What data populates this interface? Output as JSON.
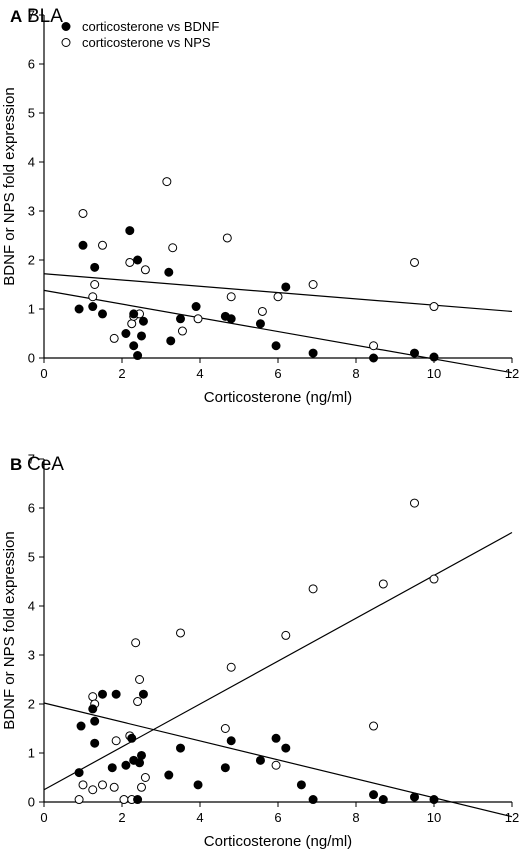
{
  "chart_data": [
    {
      "type": "scatter",
      "panel_label": "A",
      "title": "BLA",
      "xlabel": "Corticosterone (ng/ml)",
      "ylabel": "BDNF or NPS fold expression",
      "xlim": [
        0,
        12
      ],
      "ylim": [
        0,
        7
      ],
      "xticks": [
        0,
        2,
        4,
        6,
        8,
        10,
        12
      ],
      "yticks": [
        0,
        1,
        2,
        3,
        4,
        5,
        6,
        7
      ],
      "grid": false,
      "legend_position": "top-left",
      "series": [
        {
          "name": "corticosterone vs BDNF",
          "marker": "filled-circle",
          "points": [
            [
              0.9,
              1.0
            ],
            [
              1.0,
              2.3
            ],
            [
              1.25,
              1.05
            ],
            [
              1.3,
              1.85
            ],
            [
              1.5,
              0.9
            ],
            [
              2.1,
              0.5
            ],
            [
              2.2,
              2.6
            ],
            [
              2.3,
              0.25
            ],
            [
              2.3,
              0.9
            ],
            [
              2.4,
              2.0
            ],
            [
              2.4,
              0.05
            ],
            [
              2.5,
              0.45
            ],
            [
              2.55,
              0.75
            ],
            [
              3.2,
              1.75
            ],
            [
              3.25,
              0.35
            ],
            [
              3.5,
              0.8
            ],
            [
              3.9,
              1.05
            ],
            [
              4.65,
              0.85
            ],
            [
              4.8,
              0.8
            ],
            [
              5.55,
              0.7
            ],
            [
              5.95,
              0.25
            ],
            [
              6.2,
              1.45
            ],
            [
              6.9,
              0.1
            ],
            [
              8.45,
              0.0
            ],
            [
              9.5,
              0.1
            ],
            [
              10.0,
              0.02
            ]
          ],
          "fit": [
            [
              0,
              1.38
            ],
            [
              12,
              -0.3
            ]
          ]
        },
        {
          "name": "corticosterone vs NPS",
          "marker": "open-circle",
          "points": [
            [
              1.0,
              2.95
            ],
            [
              1.25,
              1.25
            ],
            [
              1.3,
              1.5
            ],
            [
              1.5,
              2.3
            ],
            [
              1.8,
              0.4
            ],
            [
              2.2,
              1.95
            ],
            [
              2.25,
              0.7
            ],
            [
              2.3,
              0.85
            ],
            [
              2.45,
              0.9
            ],
            [
              2.6,
              1.8
            ],
            [
              3.15,
              3.6
            ],
            [
              3.3,
              2.25
            ],
            [
              3.55,
              0.55
            ],
            [
              3.95,
              0.8
            ],
            [
              4.7,
              2.45
            ],
            [
              4.8,
              1.25
            ],
            [
              5.6,
              0.95
            ],
            [
              6.0,
              1.25
            ],
            [
              6.9,
              1.5
            ],
            [
              8.45,
              0.25
            ],
            [
              9.5,
              1.95
            ],
            [
              10.0,
              1.05
            ]
          ],
          "fit": [
            [
              0,
              1.72
            ],
            [
              12,
              0.95
            ]
          ]
        }
      ],
      "legend": [
        "corticosterone vs BDNF",
        "corticosterone vs NPS"
      ]
    },
    {
      "type": "scatter",
      "panel_label": "B",
      "title": "CeA",
      "xlabel": "Corticosterone (ng/ml)",
      "ylabel": "BDNF or NPS fold expression",
      "xlim": [
        0,
        12
      ],
      "ylim": [
        0,
        7
      ],
      "xticks": [
        0,
        2,
        4,
        6,
        8,
        10,
        12
      ],
      "yticks": [
        0,
        1,
        2,
        3,
        4,
        5,
        6,
        7
      ],
      "grid": false,
      "series": [
        {
          "name": "corticosterone vs BDNF",
          "marker": "filled-circle",
          "points": [
            [
              0.9,
              0.6
            ],
            [
              0.95,
              1.55
            ],
            [
              1.25,
              1.9
            ],
            [
              1.3,
              1.65
            ],
            [
              1.3,
              1.2
            ],
            [
              1.5,
              2.2
            ],
            [
              1.75,
              0.7
            ],
            [
              1.85,
              2.2
            ],
            [
              2.1,
              0.75
            ],
            [
              2.25,
              1.3
            ],
            [
              2.3,
              0.85
            ],
            [
              2.4,
              0.05
            ],
            [
              2.45,
              0.8
            ],
            [
              2.5,
              0.95
            ],
            [
              2.55,
              2.2
            ],
            [
              3.2,
              0.55
            ],
            [
              3.5,
              1.1
            ],
            [
              3.95,
              0.35
            ],
            [
              4.65,
              0.7
            ],
            [
              4.8,
              1.25
            ],
            [
              5.55,
              0.85
            ],
            [
              5.95,
              1.3
            ],
            [
              6.2,
              1.1
            ],
            [
              6.6,
              0.35
            ],
            [
              6.9,
              0.05
            ],
            [
              8.45,
              0.15
            ],
            [
              8.7,
              0.05
            ],
            [
              9.5,
              0.1
            ],
            [
              10.0,
              0.05
            ]
          ],
          "fit": [
            [
              0,
              2.02
            ],
            [
              12,
              -0.3
            ]
          ]
        },
        {
          "name": "corticosterone vs NPS",
          "marker": "open-circle",
          "points": [
            [
              0.9,
              0.05
            ],
            [
              1.0,
              0.35
            ],
            [
              1.25,
              0.25
            ],
            [
              1.25,
              2.15
            ],
            [
              1.3,
              2.0
            ],
            [
              1.5,
              0.35
            ],
            [
              1.8,
              0.3
            ],
            [
              1.85,
              1.25
            ],
            [
              2.05,
              0.05
            ],
            [
              2.2,
              1.35
            ],
            [
              2.25,
              0.05
            ],
            [
              2.35,
              3.25
            ],
            [
              2.4,
              2.05
            ],
            [
              2.45,
              2.5
            ],
            [
              2.5,
              0.3
            ],
            [
              2.6,
              0.5
            ],
            [
              3.5,
              3.45
            ],
            [
              4.65,
              1.5
            ],
            [
              4.8,
              2.75
            ],
            [
              5.95,
              0.75
            ],
            [
              6.2,
              3.4
            ],
            [
              6.9,
              4.35
            ],
            [
              8.45,
              1.55
            ],
            [
              8.7,
              4.45
            ],
            [
              9.5,
              6.1
            ],
            [
              10.0,
              4.55
            ]
          ],
          "fit": [
            [
              0,
              0.25
            ],
            [
              12,
              5.5
            ]
          ]
        }
      ]
    }
  ]
}
